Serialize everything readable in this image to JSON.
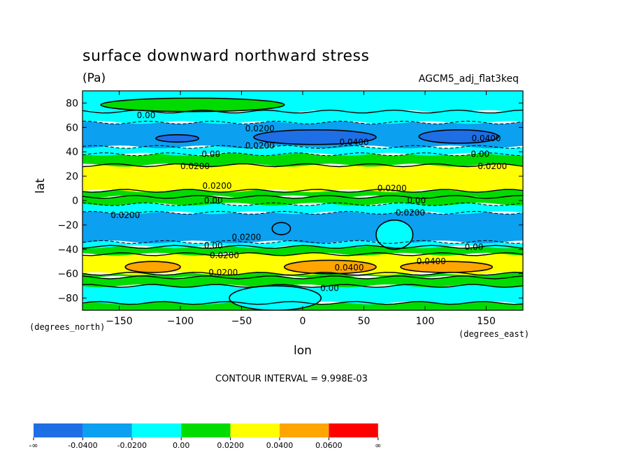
{
  "header": {
    "title": "surface downward northward stress",
    "units": "(Pa)",
    "dataset": "AGCM5_adj_flat3keq"
  },
  "axes": {
    "ylabel": "lat",
    "xlabel": "lon",
    "yunit": "(degrees_north)",
    "xunit": "(degrees_east)"
  },
  "footer": {
    "contour_interval": "CONTOUR INTERVAL = 9.998E-03"
  },
  "chart_data": {
    "type": "heatmap",
    "subtype": "filled-contour",
    "title": "surface downward northward stress",
    "units": "(Pa)",
    "xlabel": "lon",
    "ylabel": "lat",
    "xlim": [
      -180,
      180
    ],
    "ylim": [
      -90,
      90
    ],
    "xticks": [
      -150,
      -100,
      -50,
      0,
      50,
      100,
      150
    ],
    "yticks": [
      -80,
      -60,
      -40,
      -20,
      0,
      20,
      40,
      60,
      80
    ],
    "contour_interval": 0.009998,
    "legend": {
      "placement": "bottom",
      "levels": [
        "-∞",
        "-0.0400",
        "-0.0200",
        "0.00",
        "0.0200",
        "0.0400",
        "0.0600",
        "∞"
      ],
      "colors": [
        "#1e6ee6",
        "#0ba0f0",
        "#00ffff",
        "#00dc00",
        "#ffff00",
        "#ffa500",
        "#ff0000"
      ]
    },
    "bands": [
      {
        "lat": [
          -90,
          -84
        ],
        "color": "#00dc00"
      },
      {
        "lat": [
          -84,
          -70
        ],
        "color": "#00ffff"
      },
      {
        "lat": [
          -70,
          -63
        ],
        "color": "#00dc00"
      },
      {
        "lat": [
          -63,
          -60
        ],
        "color": "#00dc00"
      },
      {
        "lat": [
          -60,
          -44
        ],
        "color": "#ffff00"
      },
      {
        "lat": [
          -44,
          -38
        ],
        "color": "#00dc00"
      },
      {
        "lat": [
          -38,
          -34
        ],
        "color": "#00ffff"
      },
      {
        "lat": [
          -34,
          -10
        ],
        "color": "#0ba0f0"
      },
      {
        "lat": [
          -10,
          -3
        ],
        "color": "#00ffff"
      },
      {
        "lat": [
          -3,
          3
        ],
        "color": "#00dc00"
      },
      {
        "lat": [
          3,
          8
        ],
        "color": "#00dc00"
      },
      {
        "lat": [
          8,
          29
        ],
        "color": "#ffff00"
      },
      {
        "lat": [
          29,
          38
        ],
        "color": "#00dc00"
      },
      {
        "lat": [
          38,
          44
        ],
        "color": "#00ffff"
      },
      {
        "lat": [
          44,
          64
        ],
        "color": "#0ba0f0"
      },
      {
        "lat": [
          64,
          73
        ],
        "color": "#00ffff"
      },
      {
        "lat": [
          73,
          90
        ],
        "color": "#00ffff"
      }
    ],
    "patches": [
      {
        "value_color": "#ffa500",
        "lon": [
          -145,
          -100
        ],
        "lat": [
          -59,
          -50
        ]
      },
      {
        "value_color": "#ffa500",
        "lon": [
          -15,
          60
        ],
        "lat": [
          -60,
          -49
        ]
      },
      {
        "value_color": "#ffa500",
        "lon": [
          80,
          155
        ],
        "lat": [
          -59,
          -50
        ]
      },
      {
        "value_color": "#1e6ee6",
        "lon": [
          -120,
          -85
        ],
        "lat": [
          48,
          54
        ]
      },
      {
        "value_color": "#1e6ee6",
        "lon": [
          -40,
          60
        ],
        "lat": [
          46,
          58
        ]
      },
      {
        "value_color": "#1e6ee6",
        "lon": [
          95,
          160
        ],
        "lat": [
          47,
          58
        ]
      },
      {
        "value_color": "#00dc00",
        "lon": [
          -165,
          -15
        ],
        "lat": [
          73,
          84
        ]
      },
      {
        "value_color": "#00ffff",
        "lon": [
          -60,
          15
        ],
        "lat": [
          -90,
          -70
        ]
      },
      {
        "value_color": "#00ffff",
        "lon": [
          60,
          90
        ],
        "lat": [
          -40,
          -16
        ]
      },
      {
        "value_color": "#0ba0f0",
        "lon": [
          -25,
          -10
        ],
        "lat": [
          -28,
          -18
        ]
      }
    ],
    "contour_labels": [
      {
        "text": "0.00",
        "lon": -128,
        "lat": 70
      },
      {
        "text": "0.0200",
        "lon": -35,
        "lat": 59
      },
      {
        "text": "0.0200",
        "lon": -35,
        "lat": 45
      },
      {
        "text": "0.0400",
        "lon": 42,
        "lat": 48
      },
      {
        "text": "0.0400",
        "lon": 150,
        "lat": 51
      },
      {
        "text": "0.00",
        "lon": -75,
        "lat": 38
      },
      {
        "text": "0.00",
        "lon": 145,
        "lat": 38
      },
      {
        "text": "0.0200",
        "lon": -88,
        "lat": 28
      },
      {
        "text": "0.0200",
        "lon": 155,
        "lat": 28
      },
      {
        "text": "0.0200",
        "lon": -70,
        "lat": 12
      },
      {
        "text": "0.0200",
        "lon": 73,
        "lat": 10
      },
      {
        "text": "0.00",
        "lon": -73,
        "lat": 0
      },
      {
        "text": "0.00",
        "lon": 93,
        "lat": 0
      },
      {
        "text": "0.0200",
        "lon": -145,
        "lat": -12
      },
      {
        "text": "0.0200",
        "lon": 88,
        "lat": -10
      },
      {
        "text": "0.0200",
        "lon": -46,
        "lat": -30
      },
      {
        "text": "0.00",
        "lon": -73,
        "lat": -37
      },
      {
        "text": "0.00",
        "lon": 140,
        "lat": -38
      },
      {
        "text": "0.0200",
        "lon": -64,
        "lat": -45
      },
      {
        "text": "0.0400",
        "lon": 38,
        "lat": -55
      },
      {
        "text": "0.0400",
        "lon": 105,
        "lat": -50
      },
      {
        "text": "0.0200",
        "lon": -65,
        "lat": -59
      },
      {
        "text": "0.00",
        "lon": 22,
        "lat": -72
      }
    ],
    "grid": false
  }
}
